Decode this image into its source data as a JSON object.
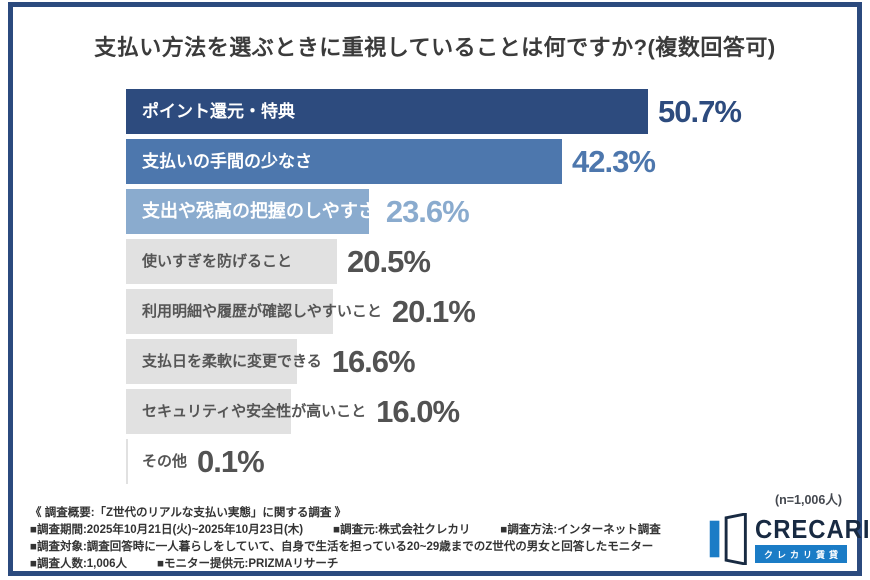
{
  "title": "支払い方法を選ぶときに重視していることは何ですか?(複数回答可)",
  "chart_data": {
    "type": "bar",
    "orientation": "horizontal",
    "unit": "%",
    "categories": [
      "ポイント還元・特典",
      "支払いの手間の少なさ",
      "支出や残高の把握のしやすさ",
      "使いすぎを防げること",
      "利用明細や履歴が確認しやすいこと",
      "支払日を柔軟に変更できる",
      "セキュリティや安全性が高いこと",
      "その他"
    ],
    "values": [
      50.7,
      42.3,
      23.6,
      20.5,
      20.1,
      16.6,
      16.0,
      0.1
    ],
    "xlim": [
      0,
      68
    ],
    "grid": false,
    "bar_colors": [
      "#2d4b7e",
      "#4d77ad",
      "#8aabce",
      "#e1e1e1",
      "#e1e1e1",
      "#e1e1e1",
      "#e1e1e1",
      "#e1e1e1"
    ],
    "value_colors": [
      "#2d4b7e",
      "#4d77ad",
      "#8aabce",
      "#525252",
      "#525252",
      "#525252",
      "#525252",
      "#525252"
    ],
    "label_colors": [
      "#ffffff",
      "#ffffff",
      "#ffffff",
      "#555555",
      "#555555",
      "#555555",
      "#555555",
      "#555555"
    ]
  },
  "footer": {
    "n_note": "(n=1,006人)",
    "lines": [
      [
        "《 調査概要:「Z世代のリアルな支払い実態」に関する調査 》"
      ],
      [
        "■調査期間:2025年10月21日(火)~2025年10月23日(木)",
        "■調査元:株式会社クレカリ",
        "■調査方法:インターネット調査"
      ],
      [
        "■調査対象:調査回答時に一人暮らしをしていて、自身で生活を担っている20~29歳までのZ世代の男女と回答したモニター"
      ],
      [
        "■調査人数:1,006人",
        "■モニター提供元:PRIZMAリサーチ"
      ]
    ]
  },
  "logo": {
    "name": "CRECARI",
    "subtitle": "クレカリ賃貸",
    "accent_color": "#1b7cc6",
    "navy_color": "#182a42"
  },
  "frame_color": "#2b4a7e"
}
